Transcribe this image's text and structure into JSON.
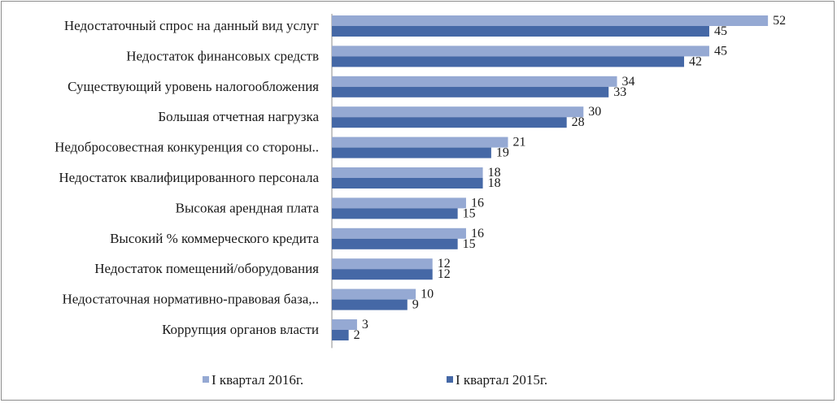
{
  "chart_data": {
    "type": "bar",
    "orientation": "horizontal",
    "title": "",
    "xlabel": "",
    "ylabel": "",
    "categories": [
      "Недостаточный  спрос на данный вид услуг",
      "Недостаток финансовых средств",
      "Существующий уровень налогообложения",
      "Большая отчетная нагрузка",
      "Недобросовестная конкуренция со стороны..",
      "Недостаток квалифицированного персонала",
      "Высокая арендная плата",
      "Высокий  % коммерческого кредита",
      "Недостаток помещений/оборудования",
      "Недостаточная нормативно-правовая база,..",
      "Коррупция органов власти"
    ],
    "series": [
      {
        "name": "I квартал 2016г.",
        "color": "#95A9D3",
        "values": [
          52,
          45,
          34,
          30,
          21,
          18,
          16,
          16,
          12,
          10,
          3
        ]
      },
      {
        "name": "I квартал 2015г.",
        "color": "#4568A6",
        "values": [
          45,
          42,
          33,
          28,
          19,
          18,
          15,
          15,
          12,
          9,
          2
        ]
      }
    ],
    "xlim": [
      0,
      52
    ],
    "grid": false,
    "legend": "bottom"
  }
}
